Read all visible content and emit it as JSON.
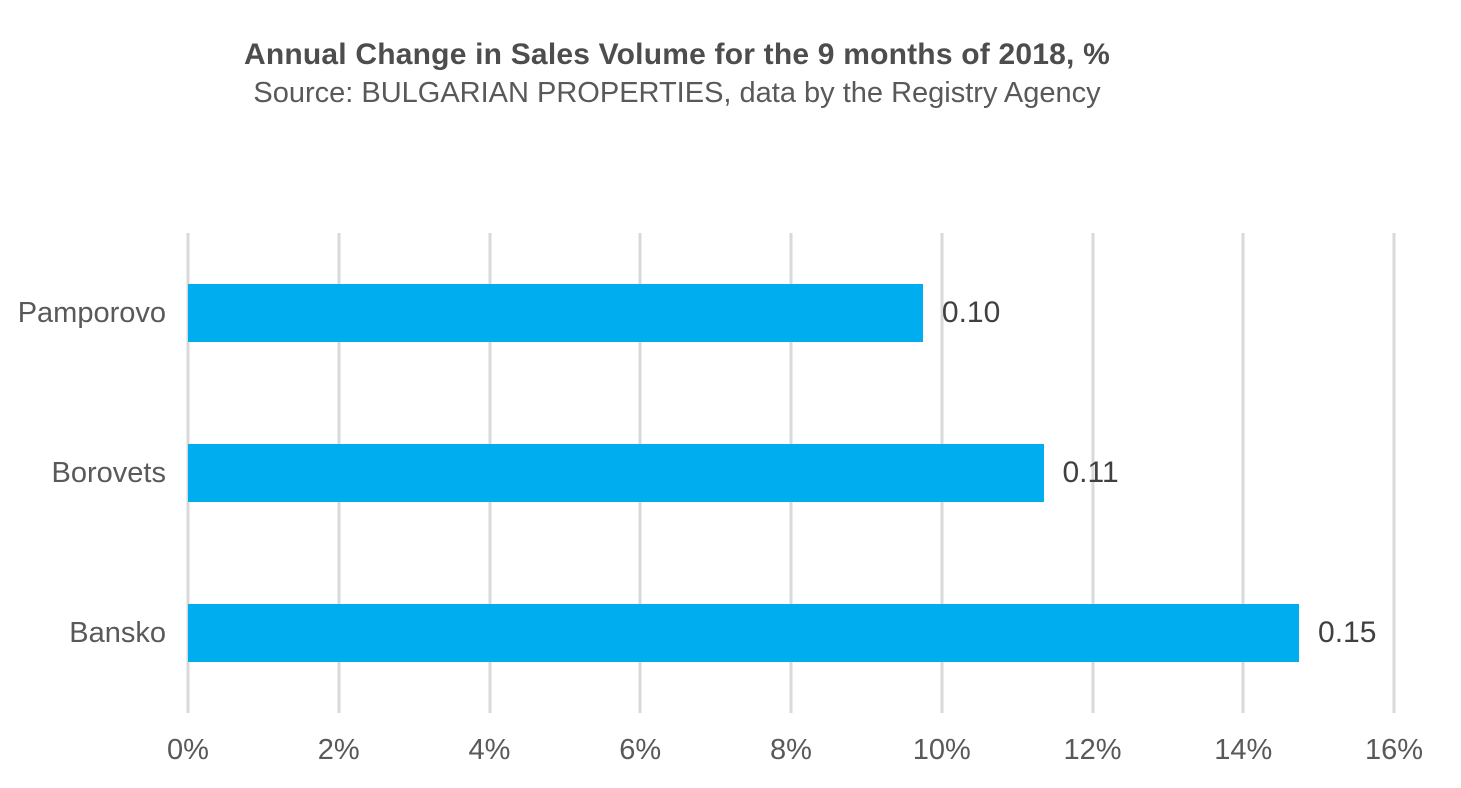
{
  "chart_data": {
    "type": "bar",
    "orientation": "horizontal",
    "title": "Annual Change in Sales Volume for the 9 months of 2018, %",
    "subtitle": "Source: BULGARIAN PROPERTIES, data by the Registry Agency",
    "categories": [
      "Pamporovo",
      "Borovets",
      "Bansko"
    ],
    "values_percent": [
      9.75,
      11.35,
      14.74
    ],
    "data_labels": [
      "0.10",
      "0.11",
      "0.15"
    ],
    "x_axis": {
      "min": 0,
      "max": 16,
      "step": 2,
      "ticks": [
        "0%",
        "2%",
        "4%",
        "6%",
        "8%",
        "10%",
        "12%",
        "14%",
        "16%"
      ]
    },
    "grid": "vertical",
    "legend": "none",
    "colors": {
      "bar": "#00AEEF",
      "gridline": "#D9D9D9",
      "title": "#4D4D4D",
      "axis_label": "#595959",
      "data_label": "#404040"
    }
  }
}
